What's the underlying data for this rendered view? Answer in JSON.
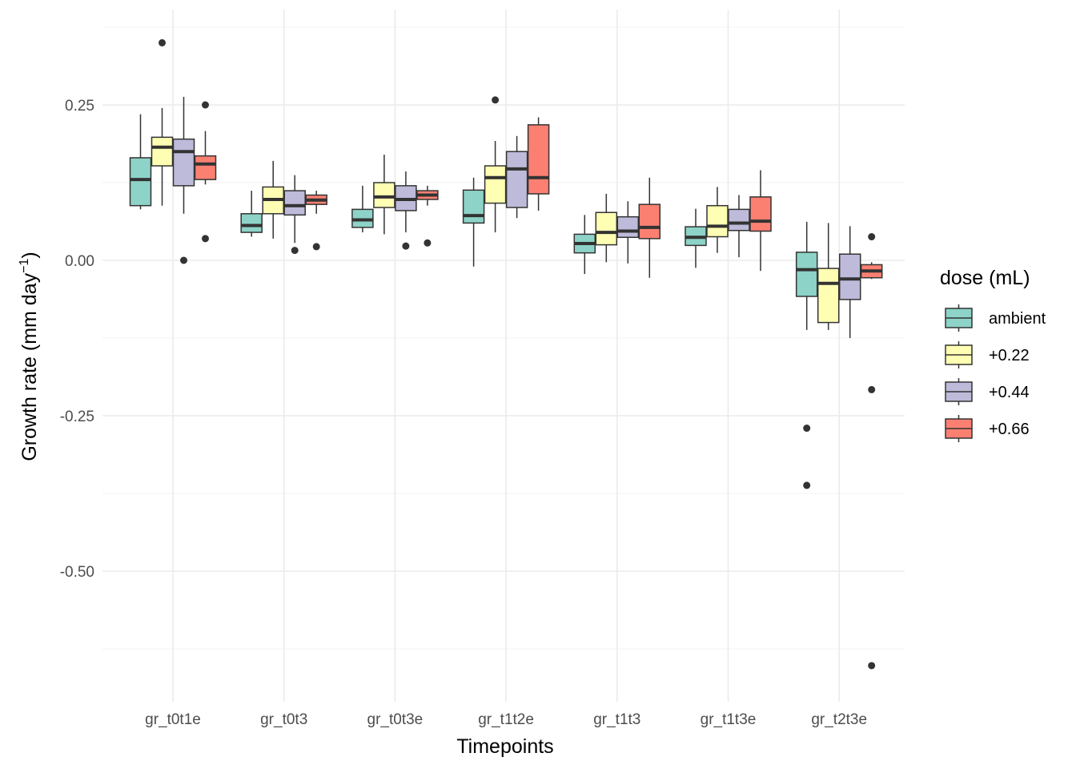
{
  "chart_data": {
    "type": "boxplot",
    "title": "",
    "xlabel": "Timepoints",
    "ylabel_main": "Growth rate (mm day",
    "ylabel_sup": "−1",
    "ylabel_close": ")",
    "ylim": [
      -0.63,
      0.38
    ],
    "yticks": [
      0.25,
      0.0,
      -0.25,
      -0.5
    ],
    "ytick_labels": [
      "0.25",
      "0.00",
      "-0.25",
      "-0.50"
    ],
    "categories": [
      "gr_t0t1e",
      "gr_t0t3",
      "gr_t0t3e",
      "gr_t1t2e",
      "gr_t1t3",
      "gr_t1t3e",
      "gr_t2t3e"
    ],
    "legend": {
      "title": "dose (mL)",
      "position": "right"
    },
    "grid": true,
    "series": [
      {
        "name": "ambient",
        "color": "#8DD3C7",
        "boxes": [
          {
            "min": 0.082,
            "q1": 0.088,
            "median": 0.13,
            "q3": 0.165,
            "max": 0.235,
            "outliers": []
          },
          {
            "min": 0.038,
            "q1": 0.045,
            "median": 0.056,
            "q3": 0.075,
            "max": 0.112,
            "outliers": []
          },
          {
            "min": 0.045,
            "q1": 0.053,
            "median": 0.065,
            "q3": 0.082,
            "max": 0.12,
            "outliers": []
          },
          {
            "min": -0.01,
            "q1": 0.06,
            "median": 0.072,
            "q3": 0.113,
            "max": 0.133,
            "outliers": []
          },
          {
            "min": -0.022,
            "q1": 0.012,
            "median": 0.027,
            "q3": 0.042,
            "max": 0.073,
            "outliers": []
          },
          {
            "min": -0.012,
            "q1": 0.024,
            "median": 0.037,
            "q3": 0.054,
            "max": 0.083,
            "outliers": []
          },
          {
            "min": -0.112,
            "q1": -0.058,
            "median": -0.015,
            "q3": 0.013,
            "max": 0.062,
            "outliers": [
              -0.27,
              -0.362
            ]
          }
        ]
      },
      {
        "name": "+0.22",
        "color": "#FFFFB3",
        "boxes": [
          {
            "min": 0.088,
            "q1": 0.152,
            "median": 0.182,
            "q3": 0.198,
            "max": 0.245,
            "outliers": [
              0.35
            ]
          },
          {
            "min": 0.035,
            "q1": 0.075,
            "median": 0.098,
            "q3": 0.118,
            "max": 0.16,
            "outliers": []
          },
          {
            "min": 0.042,
            "q1": 0.085,
            "median": 0.102,
            "q3": 0.125,
            "max": 0.17,
            "outliers": []
          },
          {
            "min": 0.045,
            "q1": 0.092,
            "median": 0.133,
            "q3": 0.152,
            "max": 0.192,
            "outliers": [
              0.258
            ]
          },
          {
            "min": -0.003,
            "q1": 0.025,
            "median": 0.045,
            "q3": 0.077,
            "max": 0.107,
            "outliers": []
          },
          {
            "min": 0.012,
            "q1": 0.038,
            "median": 0.055,
            "q3": 0.088,
            "max": 0.118,
            "outliers": []
          },
          {
            "min": -0.112,
            "q1": -0.1,
            "median": -0.037,
            "q3": -0.013,
            "max": 0.06,
            "outliers": []
          }
        ]
      },
      {
        "name": "+0.44",
        "color": "#BEBADA",
        "boxes": [
          {
            "min": 0.075,
            "q1": 0.12,
            "median": 0.175,
            "q3": 0.195,
            "max": 0.263,
            "outliers": [
              0.0
            ]
          },
          {
            "min": 0.028,
            "q1": 0.073,
            "median": 0.088,
            "q3": 0.112,
            "max": 0.137,
            "outliers": [
              0.016
            ]
          },
          {
            "min": 0.045,
            "q1": 0.08,
            "median": 0.098,
            "q3": 0.12,
            "max": 0.143,
            "outliers": [
              0.023
            ]
          },
          {
            "min": 0.068,
            "q1": 0.085,
            "median": 0.147,
            "q3": 0.175,
            "max": 0.2,
            "outliers": []
          },
          {
            "min": -0.005,
            "q1": 0.037,
            "median": 0.047,
            "q3": 0.07,
            "max": 0.095,
            "outliers": []
          },
          {
            "min": 0.005,
            "q1": 0.048,
            "median": 0.06,
            "q3": 0.082,
            "max": 0.105,
            "outliers": []
          },
          {
            "min": -0.125,
            "q1": -0.063,
            "median": -0.03,
            "q3": 0.01,
            "max": 0.055,
            "outliers": []
          }
        ]
      },
      {
        "name": "+0.66",
        "color": "#FB8072",
        "boxes": [
          {
            "min": 0.122,
            "q1": 0.13,
            "median": 0.155,
            "q3": 0.168,
            "max": 0.208,
            "outliers": [
              0.25,
              0.035
            ]
          },
          {
            "min": 0.075,
            "q1": 0.09,
            "median": 0.097,
            "q3": 0.105,
            "max": 0.112,
            "outliers": [
              0.022
            ]
          },
          {
            "min": 0.088,
            "q1": 0.098,
            "median": 0.105,
            "q3": 0.112,
            "max": 0.12,
            "outliers": [
              0.028
            ]
          },
          {
            "min": 0.08,
            "q1": 0.107,
            "median": 0.133,
            "q3": 0.218,
            "max": 0.23,
            "outliers": []
          },
          {
            "min": -0.028,
            "q1": 0.035,
            "median": 0.053,
            "q3": 0.09,
            "max": 0.133,
            "outliers": []
          },
          {
            "min": -0.017,
            "q1": 0.047,
            "median": 0.063,
            "q3": 0.102,
            "max": 0.145,
            "outliers": []
          },
          {
            "min": -0.03,
            "q1": -0.028,
            "median": -0.017,
            "q3": -0.007,
            "max": -0.003,
            "outliers": [
              0.038,
              -0.208,
              -0.652
            ]
          }
        ]
      }
    ]
  }
}
